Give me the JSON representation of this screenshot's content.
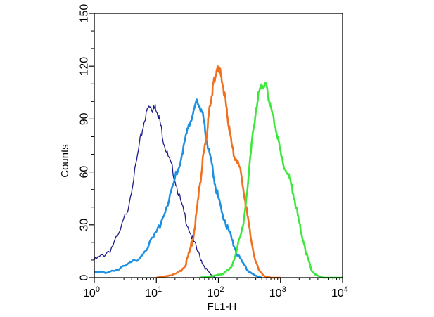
{
  "chart_data": {
    "type": "line",
    "title": "",
    "xlabel": "FL1-H",
    "ylabel": "Counts",
    "xscale": "log",
    "xlim": [
      1,
      10000
    ],
    "ylim": [
      0,
      150
    ],
    "grid": false,
    "legend": "none",
    "xticks": [
      {
        "value": 1,
        "base": "10",
        "exp": "0"
      },
      {
        "value": 10,
        "base": "10",
        "exp": "1"
      },
      {
        "value": 100,
        "base": "10",
        "exp": "2"
      },
      {
        "value": 1000,
        "base": "10",
        "exp": "3"
      },
      {
        "value": 10000,
        "base": "10",
        "exp": "4"
      }
    ],
    "yticks": [
      {
        "value": 0,
        "label": "0"
      },
      {
        "value": 30,
        "label": "30"
      },
      {
        "value": 60,
        "label": "60"
      },
      {
        "value": 90,
        "label": "90"
      },
      {
        "value": 120,
        "label": "120"
      },
      {
        "value": 150,
        "label": "150"
      }
    ],
    "series": [
      {
        "color": "#1a1a8c",
        "x": [
          1,
          1.3,
          1.8,
          2.5,
          3.5,
          4.5,
          5.5,
          6.5,
          7.3,
          8.0,
          8.8,
          9.6,
          10.5,
          11.5,
          13,
          15,
          18,
          22,
          26,
          32,
          40,
          50,
          60,
          70,
          80,
          90,
          100
        ],
        "y": [
          10,
          12,
          16,
          24,
          40,
          60,
          78,
          90,
          96,
          98,
          95,
          97,
          94,
          88,
          78,
          70,
          62,
          50,
          40,
          30,
          20,
          12,
          6,
          3,
          1,
          0,
          0
        ]
      },
      {
        "color": "#1e90e0",
        "x": [
          1,
          1.5,
          2.5,
          4,
          6,
          9,
          12,
          16,
          20,
          25,
          30,
          35,
          40,
          45,
          50,
          56,
          62,
          70,
          80,
          90,
          100,
          120,
          140,
          170,
          200,
          250,
          300,
          400,
          500
        ],
        "y": [
          3,
          3,
          5,
          8,
          14,
          22,
          32,
          45,
          56,
          68,
          80,
          88,
          95,
          100,
          98,
          92,
          82,
          72,
          62,
          52,
          45,
          35,
          28,
          20,
          14,
          8,
          4,
          1,
          0
        ]
      },
      {
        "color": "#f07020",
        "x": [
          10,
          15,
          20,
          25,
          30,
          35,
          40,
          45,
          50,
          55,
          60,
          65,
          70,
          75,
          80,
          85,
          90,
          95,
          100,
          105,
          110,
          120,
          130,
          140,
          150,
          170,
          190,
          220,
          250,
          280,
          320,
          380,
          450,
          550,
          700,
          1000
        ],
        "y": [
          0,
          1,
          2,
          4,
          8,
          15,
          25,
          38,
          52,
          64,
          74,
          82,
          92,
          100,
          106,
          112,
          115,
          118,
          119,
          118,
          114,
          108,
          100,
          92,
          84,
          72,
          68,
          62,
          52,
          40,
          26,
          12,
          4,
          1,
          0,
          0
        ]
      },
      {
        "color": "#3ce83c",
        "x": [
          50,
          80,
          120,
          160,
          200,
          250,
          300,
          350,
          400,
          450,
          500,
          550,
          600,
          650,
          700,
          800,
          900,
          1000,
          1200,
          1400,
          1600,
          1800,
          2000,
          2400,
          2800,
          3200,
          3600,
          4000,
          5000,
          7000,
          10000
        ],
        "y": [
          0,
          1,
          2,
          6,
          15,
          30,
          55,
          78,
          95,
          105,
          109,
          110,
          107,
          102,
          96,
          88,
          80,
          70,
          62,
          56,
          48,
          40,
          30,
          20,
          10,
          4,
          2,
          1,
          0,
          0,
          0
        ]
      }
    ]
  }
}
